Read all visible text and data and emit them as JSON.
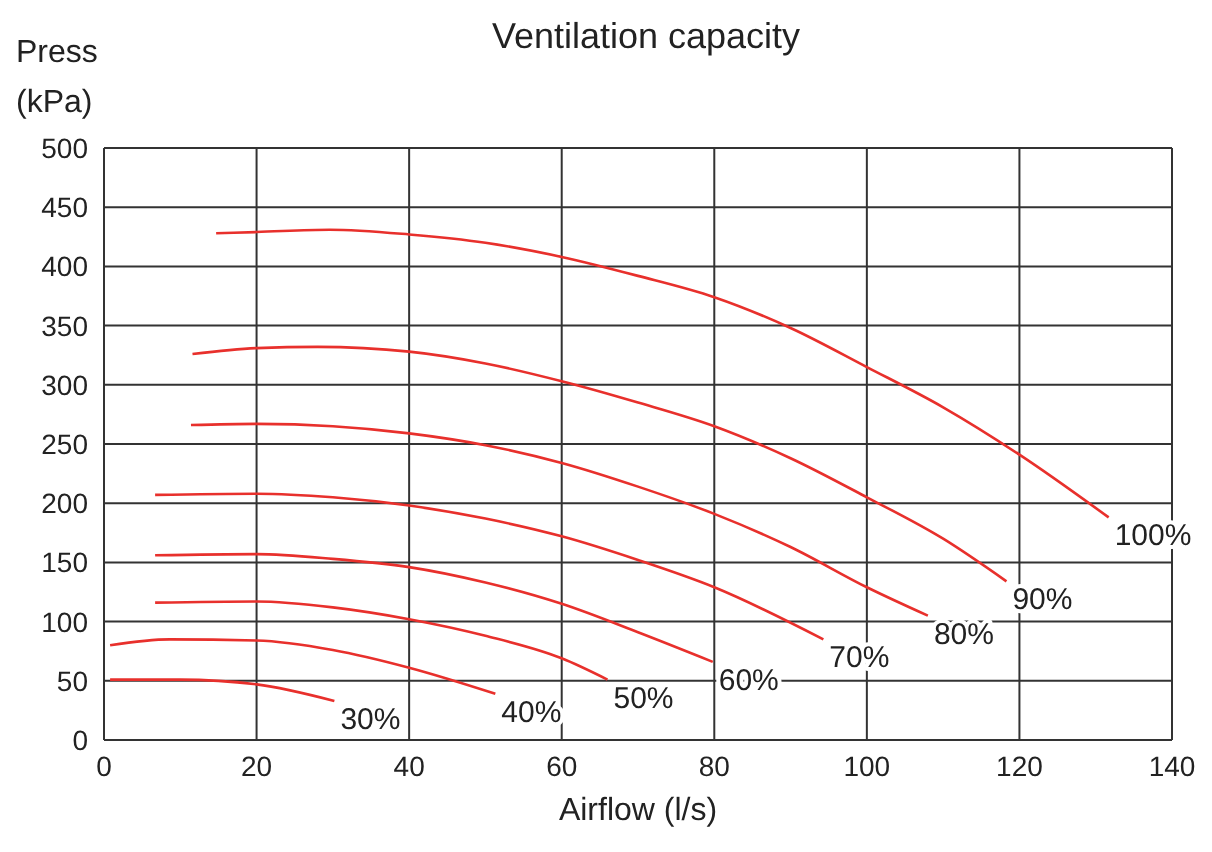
{
  "chart_data": {
    "type": "line",
    "title": "Ventilation capacity",
    "xlabel": "Airflow (l/s)",
    "ylabel": "Press (kPa)",
    "xlim": [
      0,
      140
    ],
    "xticks": [
      0,
      20,
      40,
      60,
      80,
      100,
      120,
      140
    ],
    "ylim": [
      0,
      500
    ],
    "yticks": [
      0,
      50,
      100,
      150,
      200,
      250,
      300,
      350,
      400,
      450,
      500
    ],
    "grid": true,
    "marker": "none",
    "line_style": "solid",
    "series": [
      {
        "name": "30%",
        "color": "#e8302c",
        "x": [
          0.8,
          10,
          20,
          30.2
        ],
        "values": [
          51,
          51,
          47,
          33
        ]
      },
      {
        "name": "40%",
        "color": "#e8302c",
        "x": [
          0.8,
          8.6,
          20,
          30,
          40,
          51.3
        ],
        "values": [
          80,
          85,
          84,
          76,
          61,
          39
        ]
      },
      {
        "name": "50%",
        "color": "#e8302c",
        "x": [
          6.7,
          20,
          30,
          40,
          50,
          60,
          66
        ],
        "values": [
          116,
          117,
          112,
          102,
          88,
          69,
          51
        ]
      },
      {
        "name": "60%",
        "color": "#e8302c",
        "x": [
          6.7,
          20,
          30,
          40,
          50,
          60,
          70,
          79.8
        ],
        "values": [
          156,
          157,
          153,
          146,
          133,
          115,
          91,
          66
        ]
      },
      {
        "name": "70%",
        "color": "#e8302c",
        "x": [
          6.7,
          20,
          30,
          40,
          50,
          60,
          70,
          80,
          94.3
        ],
        "values": [
          207,
          208,
          205,
          198,
          187,
          172,
          152,
          129,
          85
        ]
      },
      {
        "name": "80%",
        "color": "#e8302c",
        "x": [
          11.4,
          20,
          30,
          40,
          50,
          60,
          70,
          80,
          90,
          100,
          108
        ],
        "values": [
          266,
          267,
          265,
          259,
          249,
          234,
          214,
          191,
          163,
          129,
          105
        ]
      },
      {
        "name": "90%",
        "color": "#e8302c",
        "x": [
          11.6,
          20,
          28,
          40,
          50,
          60,
          70,
          80,
          90,
          100,
          110,
          118.3
        ],
        "values": [
          326,
          331,
          332,
          328,
          318,
          303,
          285,
          265,
          238,
          205,
          170,
          134
        ]
      },
      {
        "name": "100%",
        "color": "#e8302c",
        "x": [
          14.7,
          20,
          29.6,
          40,
          50,
          60,
          70,
          80,
          90,
          100,
          110,
          120,
          131.7
        ],
        "values": [
          428,
          429,
          431,
          427,
          420,
          408,
          392,
          374,
          348,
          315,
          281,
          241,
          188
        ]
      }
    ]
  }
}
